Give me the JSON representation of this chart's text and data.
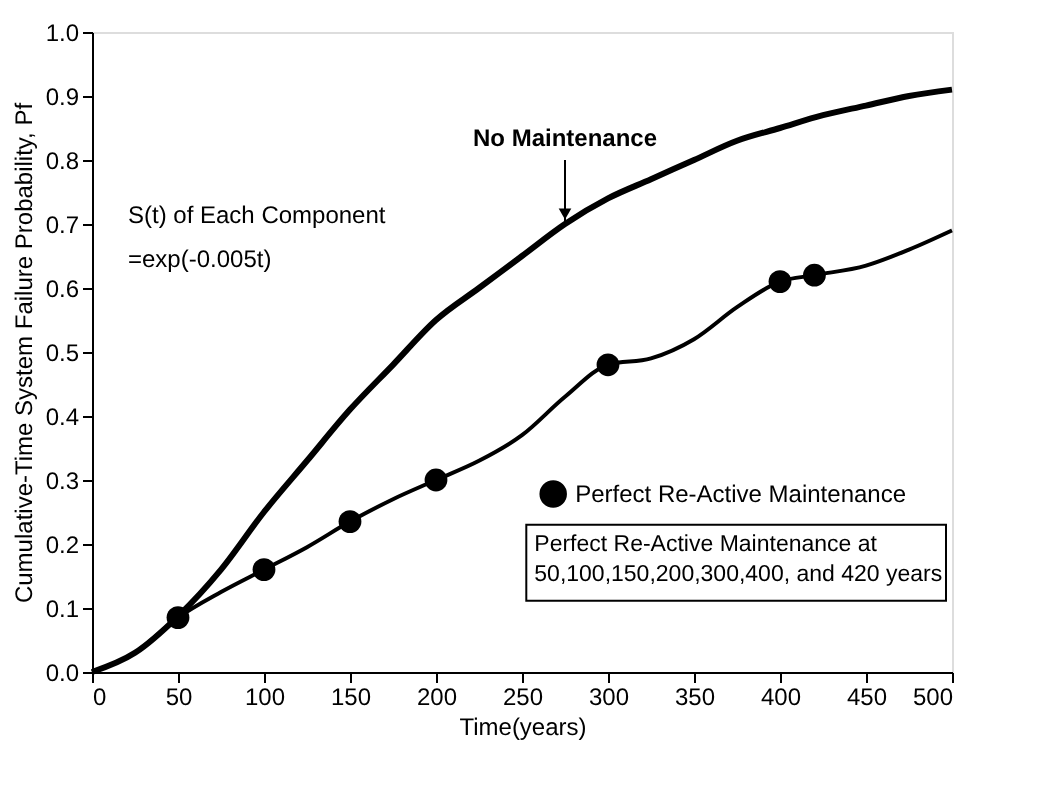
{
  "chart_data": {
    "type": "line",
    "xlabel": "Time(years)",
    "ylabel": "Cumulative-Time System Failure Probability, Pf",
    "xlim": [
      0,
      500
    ],
    "xticks": [
      0,
      50,
      100,
      150,
      200,
      250,
      300,
      350,
      400,
      450,
      500
    ],
    "ylim": [
      0,
      1
    ],
    "yticks": [
      {
        "value": 0,
        "label": "0.0"
      },
      0.1,
      0.2,
      0.3,
      0.4,
      0.5,
      0.6,
      0.7,
      0.8,
      0.9,
      {
        "value": 1,
        "label": "1.0"
      }
    ],
    "grid": false,
    "legend": "bottom right",
    "line_style": "solid",
    "series": [
      {
        "type": "line",
        "color": "#000000",
        "x": [
          0,
          25,
          50,
          75,
          100,
          125,
          150,
          175,
          200,
          225,
          250,
          275,
          300,
          325,
          350,
          375,
          400,
          425,
          450,
          475,
          500
        ],
        "values": [
          0,
          0.03,
          0.087,
          0.16,
          0.25,
          0.33,
          0.41,
          0.48,
          0.55,
          0.6,
          0.65,
          0.7,
          0.74,
          0.77,
          0.8,
          0.83,
          0.85,
          0.87,
          0.885,
          0.9,
          0.91
        ]
      },
      {
        "type": "line",
        "color": "#000000",
        "x": [
          0,
          25,
          50,
          75,
          100,
          125,
          150,
          175,
          200,
          225,
          250,
          275,
          300,
          325,
          350,
          375,
          400,
          420,
          450,
          475,
          500
        ],
        "values": [
          0,
          0.03,
          0.085,
          0.125,
          0.16,
          0.195,
          0.235,
          0.27,
          0.3,
          0.33,
          0.37,
          0.43,
          0.48,
          0.49,
          0.52,
          0.57,
          0.61,
          0.62,
          0.635,
          0.66,
          0.69
        ]
      },
      {
        "type": "scatter",
        "name": "Perfect Re-Active Maintenance",
        "color": "#000000",
        "marker": "circle",
        "x": [
          50,
          100,
          150,
          200,
          300,
          400,
          420
        ],
        "values": [
          0.085,
          0.16,
          0.235,
          0.3,
          0.48,
          0.61,
          0.62
        ]
      }
    ],
    "annotations": [
      {
        "text": "No Maintenance",
        "x": 275,
        "y": 0.7
      },
      "S(t) of Each Component",
      "=exp(-0.005t)",
      "Perfect Re-Active Maintenance at\n50,100,150,200,300,400, and 420 years"
    ]
  }
}
